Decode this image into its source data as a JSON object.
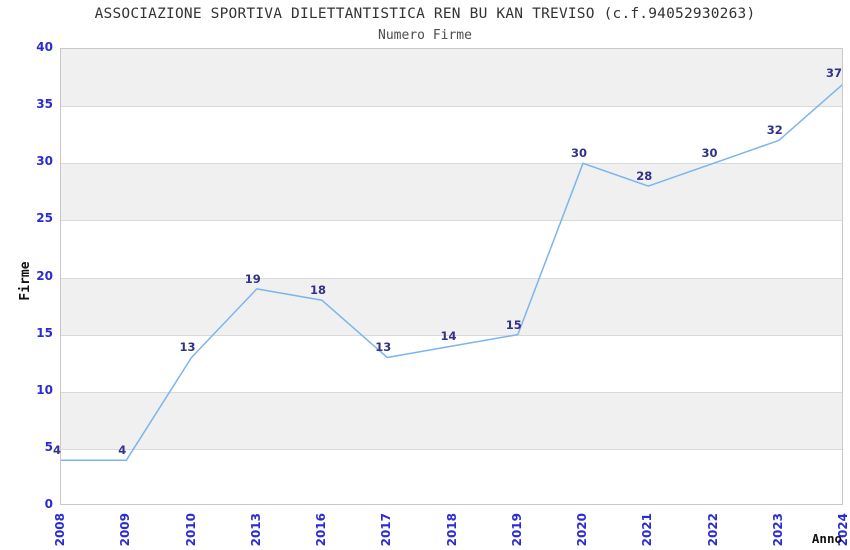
{
  "chart_data": {
    "type": "line",
    "title": "ASSOCIAZIONE SPORTIVA DILETTANTISTICA REN BU KAN TREVISO (c.f.94052930263)",
    "subtitle": "Numero Firme",
    "xlabel": "Anno",
    "ylabel": "Firme",
    "categories": [
      "2008",
      "2009",
      "2010",
      "2013",
      "2016",
      "2017",
      "2018",
      "2019",
      "2020",
      "2021",
      "2022",
      "2023",
      "2024"
    ],
    "series": [
      {
        "name": "Numero Firme",
        "values": [
          4,
          4,
          13,
          19,
          18,
          13,
          14,
          15,
          30,
          28,
          30,
          32,
          37
        ]
      }
    ],
    "ylim": [
      0,
      40
    ],
    "ytick_interval": 5,
    "yticks": [
      0,
      5,
      10,
      15,
      20,
      25,
      30,
      35,
      40
    ],
    "data_labels": true,
    "legend_position": "none",
    "grid": "alternating-horizontal-bands",
    "colors": {
      "line": "#7cb5ec",
      "band_gray": "#f0f0f0",
      "gridline": "#d9d9d9",
      "plot_border": "#c9c9c9",
      "tick_text": "#2b2bd5",
      "data_label_text": "#333386",
      "title_text": "#333333",
      "subtitle_text": "#4d4d4d"
    }
  }
}
